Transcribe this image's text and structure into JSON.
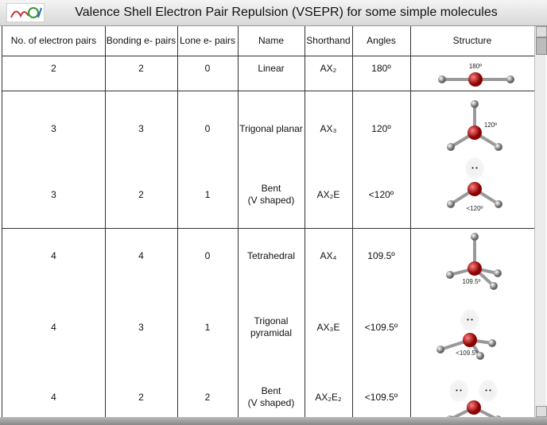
{
  "header": {
    "title": "Valence Shell Electron Pair Repulsion (VSEPR) for some simple molecules"
  },
  "table": {
    "columns": [
      "No. of electron pairs",
      "Bonding e- pairs",
      "Lone e- pairs",
      "Name",
      "Shorthand",
      "Angles",
      "Structure"
    ],
    "rows": [
      {
        "electron_pairs": "2",
        "bonding_pairs": "2",
        "lone_pairs": "0",
        "name": [
          "Linear"
        ],
        "shorthand": "AX₂",
        "angles": "180º",
        "structure_label": "180º"
      },
      {
        "electron_pairs": "3",
        "bonding_pairs": "3",
        "lone_pairs": "0",
        "name": [
          "Trigonal planar"
        ],
        "shorthand": "AX₃",
        "angles": "120º",
        "structure_label": "120º"
      },
      {
        "electron_pairs": "3",
        "bonding_pairs": "2",
        "lone_pairs": "1",
        "name": [
          "Bent",
          "(V shaped)"
        ],
        "shorthand": "AX₂E",
        "angles": "<120º",
        "structure_label": "<120º"
      },
      {
        "electron_pairs": "4",
        "bonding_pairs": "4",
        "lone_pairs": "0",
        "name": [
          "Tetrahedral"
        ],
        "shorthand": "AX₄",
        "angles": "109.5º",
        "structure_label": "109.5º"
      },
      {
        "electron_pairs": "4",
        "bonding_pairs": "3",
        "lone_pairs": "1",
        "name": [
          "Trigonal",
          "pyramidal"
        ],
        "shorthand": "AX₃E",
        "angles": "<109.5º",
        "structure_label": "<109.5º"
      },
      {
        "electron_pairs": "4",
        "bonding_pairs": "2",
        "lone_pairs": "2",
        "name": [
          "Bent",
          "(V shaped)"
        ],
        "shorthand": "AX₂E₂",
        "angles": "<109.5º",
        "structure_label": null
      }
    ]
  }
}
